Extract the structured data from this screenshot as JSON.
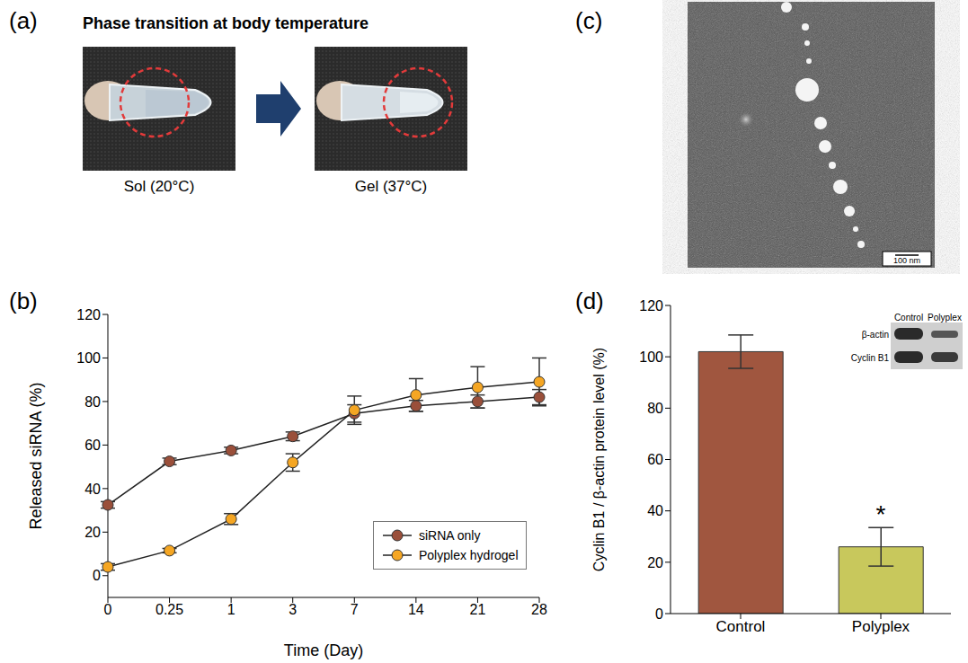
{
  "chart_data": [
    {
      "type": "line",
      "panel_label": "(b)",
      "x_label": "Time (Day)",
      "y_label": "Released siRNA (%)",
      "categories": [
        "0",
        "0.25",
        "1",
        "3",
        "7",
        "14",
        "21",
        "28"
      ],
      "ylim": [
        -10,
        120
      ],
      "yticks": [
        0,
        20,
        40,
        60,
        80,
        100,
        120
      ],
      "legend": "lower right",
      "marker": "circle",
      "series": [
        {
          "name": "siRNA only",
          "color": "#9A4F3A",
          "values": [
            32.5,
            52.5,
            57.5,
            64,
            74.5,
            78,
            80,
            82
          ],
          "errors": [
            1.5,
            1.5,
            1.5,
            2,
            4,
            2.5,
            3,
            3.5
          ]
        },
        {
          "name": "Polyplex hydrogel",
          "color": "#F5A623",
          "values": [
            4,
            11.5,
            26,
            52,
            76,
            83,
            86.5,
            89
          ],
          "errors": [
            1.5,
            1,
            2.5,
            4,
            6.5,
            7.5,
            9.5,
            11
          ]
        }
      ]
    },
    {
      "type": "bar",
      "panel_label": "(d)",
      "y_label": "Cyclin B1 / β-actin protein level (%)",
      "categories": [
        "Control",
        "Polyplex"
      ],
      "values": [
        102,
        26
      ],
      "errors": [
        6.5,
        7.5
      ],
      "colors": [
        "#A0563F",
        "#C8C85C"
      ],
      "ylim": [
        0,
        120
      ],
      "yticks": [
        0,
        20,
        40,
        60,
        80,
        100,
        120
      ],
      "annotations": [
        {
          "text": "*",
          "category": "Polyplex"
        }
      ],
      "inset": {
        "columns": [
          "Control",
          "Polyplex"
        ],
        "rows": [
          "β-actin",
          "Cyclin B1"
        ]
      }
    }
  ],
  "panel_a": {
    "panel_label": "(a)",
    "title": "Phase transition at body temperature",
    "images": [
      {
        "label": "Sol (20°C)"
      },
      {
        "label": "Gel (37°C)"
      }
    ]
  },
  "panel_c": {
    "panel_label": "(c)",
    "scale_bar": "100 nm"
  }
}
